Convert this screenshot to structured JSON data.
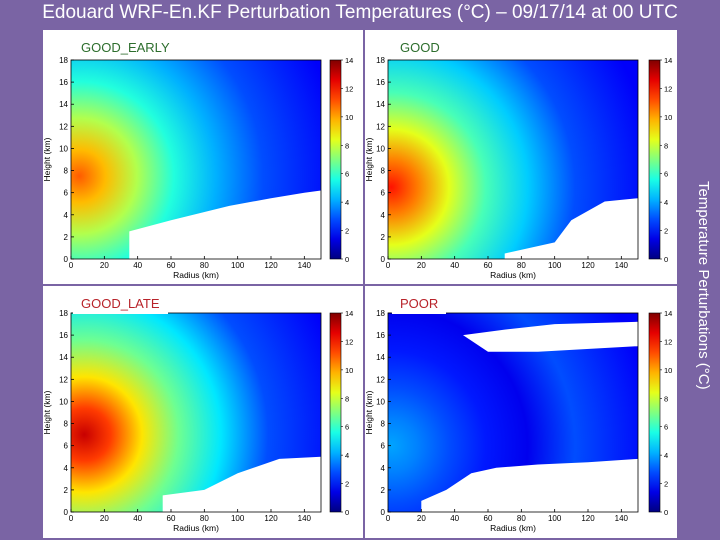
{
  "title": "Edouard WRF-En.KF Perturbation Temperatures (°C) – 09/17/14 at 00 UTC",
  "side_label": "Temperature Perturbations (°C)",
  "colors": {
    "background": "#7a64a4",
    "tag_green": "#2d6e2d",
    "tag_red": "#b8232a"
  },
  "chart_data": [
    {
      "type": "heatmap",
      "panel": "GOOD_EARLY",
      "xlabel": "Radius (km)",
      "ylabel": "Height (km)",
      "xlim": [
        0,
        150
      ],
      "ylim": [
        0,
        18
      ],
      "xticks": [
        0,
        20,
        40,
        60,
        80,
        100,
        120,
        140
      ],
      "yticks": [
        0,
        2,
        4,
        6,
        8,
        10,
        12,
        14,
        16,
        18
      ],
      "colorbar": {
        "min": 0,
        "max": 14,
        "ticks": [
          0,
          2,
          4,
          6,
          8,
          10,
          12,
          14
        ]
      },
      "warm_core": {
        "radius": 5,
        "height": 7.5,
        "max": 11
      },
      "missing_regions": [
        {
          "label": "lower-right",
          "points": [
            [
              35,
              2.5
            ],
            [
              60,
              3.5
            ],
            [
              95,
              4.8
            ],
            [
              120,
              5.5
            ],
            [
              140,
              6
            ],
            [
              150,
              6.2
            ],
            [
              150,
              0
            ],
            [
              35,
              0
            ]
          ]
        }
      ]
    },
    {
      "type": "heatmap",
      "panel": "GOOD",
      "xlabel": "Radius (km)",
      "ylabel": "Height (km)",
      "xlim": [
        0,
        150
      ],
      "ylim": [
        0,
        18
      ],
      "xticks": [
        0,
        20,
        40,
        60,
        80,
        100,
        120,
        140
      ],
      "yticks": [
        0,
        2,
        4,
        6,
        8,
        10,
        12,
        14,
        16,
        18
      ],
      "colorbar": {
        "min": 0,
        "max": 14,
        "ticks": [
          0,
          2,
          4,
          6,
          8,
          10,
          12,
          14
        ]
      },
      "warm_core": {
        "radius": 2,
        "height": 6.5,
        "max": 12
      },
      "missing_regions": [
        {
          "label": "lower-right",
          "points": [
            [
              70,
              0.5
            ],
            [
              100,
              1.5
            ],
            [
              110,
              3.5
            ],
            [
              130,
              5.2
            ],
            [
              150,
              5.5
            ],
            [
              150,
              0
            ],
            [
              70,
              0
            ]
          ]
        }
      ]
    },
    {
      "type": "heatmap",
      "panel": "GOOD_LATE",
      "xlabel": "Radius (km)",
      "ylabel": "Height (km)",
      "xlim": [
        0,
        150
      ],
      "ylim": [
        0,
        18
      ],
      "xticks": [
        0,
        20,
        40,
        60,
        80,
        100,
        120,
        140
      ],
      "yticks": [
        0,
        2,
        4,
        6,
        8,
        10,
        12,
        14,
        16,
        18
      ],
      "colorbar": {
        "min": 0,
        "max": 14,
        "ticks": [
          0,
          2,
          4,
          6,
          8,
          10,
          12,
          14
        ]
      },
      "warm_core": {
        "radius": 8,
        "height": 7,
        "max": 13
      },
      "missing_regions": [
        {
          "label": "lower-right",
          "points": [
            [
              55,
              1.5
            ],
            [
              80,
              2
            ],
            [
              100,
              3.5
            ],
            [
              125,
              4.8
            ],
            [
              150,
              5
            ],
            [
              150,
              0
            ],
            [
              55,
              0
            ]
          ]
        }
      ]
    },
    {
      "type": "heatmap",
      "panel": "POOR",
      "xlabel": "Radius (km)",
      "ylabel": "Height (km)",
      "xlim": [
        0,
        150
      ],
      "ylim": [
        0,
        18
      ],
      "xticks": [
        0,
        20,
        40,
        60,
        80,
        100,
        120,
        140
      ],
      "yticks": [
        0,
        2,
        4,
        6,
        8,
        10,
        12,
        14,
        16,
        18
      ],
      "colorbar": {
        "min": 0,
        "max": 14,
        "ticks": [
          0,
          2,
          4,
          6,
          8,
          10,
          12,
          14
        ]
      },
      "warm_core": {
        "radius": 2,
        "height": 6,
        "max": 4
      },
      "missing_regions": [
        {
          "label": "lower-right",
          "points": [
            [
              20,
              1
            ],
            [
              35,
              2
            ],
            [
              50,
              3.5
            ],
            [
              65,
              4
            ],
            [
              90,
              4.3
            ],
            [
              120,
              4.5
            ],
            [
              150,
              4.8
            ],
            [
              150,
              0
            ],
            [
              20,
              0
            ]
          ]
        },
        {
          "label": "upper",
          "points": [
            [
              45,
              16
            ],
            [
              70,
              16.5
            ],
            [
              100,
              17
            ],
            [
              150,
              17.2
            ],
            [
              150,
              15
            ],
            [
              90,
              14.5
            ],
            [
              60,
              14.5
            ],
            [
              45,
              16
            ]
          ]
        }
      ]
    }
  ]
}
